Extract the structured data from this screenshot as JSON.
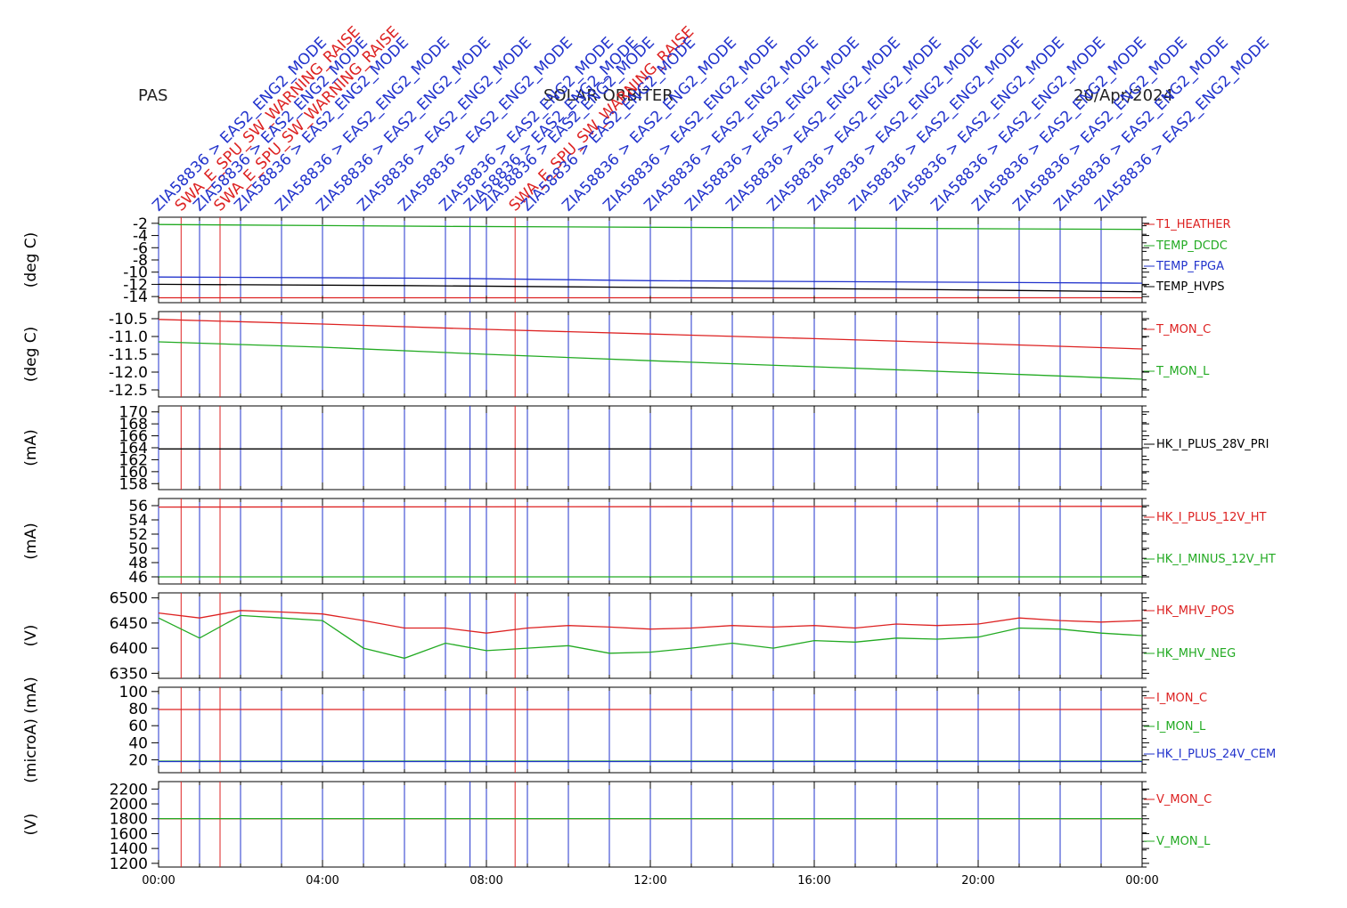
{
  "header": {
    "instrument": "PAS",
    "mission": "SOLAR ORBITER",
    "date": "20/Apr/2024"
  },
  "event_labels": [
    {
      "t": 0.0,
      "text": "ZIA58836 > EAS2_ENG2_MODE",
      "color": "#2233cc"
    },
    {
      "t": 0.55,
      "text": "SWA_E_SPU_SW_WARNING_RAISE",
      "color": "#dd2222"
    },
    {
      "t": 1.0,
      "text": "ZIA58836 > EAS2_ENG2_MODE",
      "color": "#2233cc"
    },
    {
      "t": 1.5,
      "text": "SWA_E_SPU_SW_WARNING_RAISE",
      "color": "#dd2222"
    },
    {
      "t": 2.0,
      "text": "ZIA58836 > EAS2_ENG2_MODE",
      "color": "#2233cc"
    },
    {
      "t": 3.0,
      "text": "ZIA58836 > EAS2_ENG2_MODE",
      "color": "#2233cc"
    },
    {
      "t": 4.0,
      "text": "ZIA58836 > EAS2_ENG2_MODE",
      "color": "#2233cc"
    },
    {
      "t": 5.0,
      "text": "ZIA58836 > EAS2_ENG2_MODE",
      "color": "#2233cc"
    },
    {
      "t": 6.0,
      "text": "ZIA58836 > EAS2_ENG2_MODE",
      "color": "#2233cc"
    },
    {
      "t": 7.0,
      "text": "ZIA58836 > EAS2_ENG2_MODE",
      "color": "#2233cc"
    },
    {
      "t": 7.6,
      "text": "ZIA58836 > EAS2_ENG2_MODE",
      "color": "#2233cc"
    },
    {
      "t": 8.0,
      "text": "ZIA58836 > EAS2_ENG2_MODE",
      "color": "#2233cc"
    },
    {
      "t": 8.7,
      "text": "SWA_E_SPU_SW_WARNING_RAISE",
      "color": "#dd2222"
    },
    {
      "t": 9.0,
      "text": "ZIA58836 > EAS2_ENG2_MODE",
      "color": "#2233cc"
    },
    {
      "t": 10.0,
      "text": "ZIA58836 > EAS2_ENG2_MODE",
      "color": "#2233cc"
    },
    {
      "t": 11.0,
      "text": "ZIA58836 > EAS2_ENG2_MODE",
      "color": "#2233cc"
    },
    {
      "t": 12.0,
      "text": "ZIA58836 > EAS2_ENG2_MODE",
      "color": "#2233cc"
    },
    {
      "t": 13.0,
      "text": "ZIA58836 > EAS2_ENG2_MODE",
      "color": "#2233cc"
    },
    {
      "t": 14.0,
      "text": "ZIA58836 > EAS2_ENG2_MODE",
      "color": "#2233cc"
    },
    {
      "t": 15.0,
      "text": "ZIA58836 > EAS2_ENG2_MODE",
      "color": "#2233cc"
    },
    {
      "t": 16.0,
      "text": "ZIA58836 > EAS2_ENG2_MODE",
      "color": "#2233cc"
    },
    {
      "t": 17.0,
      "text": "ZIA58836 > EAS2_ENG2_MODE",
      "color": "#2233cc"
    },
    {
      "t": 18.0,
      "text": "ZIA58836 > EAS2_ENG2_MODE",
      "color": "#2233cc"
    },
    {
      "t": 19.0,
      "text": "ZIA58836 > EAS2_ENG2_MODE",
      "color": "#2233cc"
    },
    {
      "t": 20.0,
      "text": "ZIA58836 > EAS2_ENG2_MODE",
      "color": "#2233cc"
    },
    {
      "t": 21.0,
      "text": "ZIA58836 > EAS2_ENG2_MODE",
      "color": "#2233cc"
    },
    {
      "t": 22.0,
      "text": "ZIA58836 > EAS2_ENG2_MODE",
      "color": "#2233cc"
    },
    {
      "t": 23.0,
      "text": "ZIA58836 > EAS2_ENG2_MODE",
      "color": "#2233cc"
    }
  ],
  "chart_data": [
    {
      "type": "line",
      "ylabel": "(deg C)",
      "yticks": [
        "-2",
        "-4",
        "-6",
        "-8",
        "-10",
        "-12",
        "-14"
      ],
      "ylim": [
        -15,
        -1
      ],
      "series": [
        {
          "name": "T1_HEATHER",
          "color": "#dd2222",
          "x": [
            0,
            24
          ],
          "y": [
            -14.2,
            -14.2
          ]
        },
        {
          "name": "TEMP_DCDC",
          "color": "#22aa22",
          "x": [
            0,
            7,
            24
          ],
          "y": [
            -2.2,
            -2.5,
            -3.0
          ]
        },
        {
          "name": "TEMP_FPGA",
          "color": "#2233cc",
          "x": [
            0,
            7,
            12,
            24
          ],
          "y": [
            -10.8,
            -11.0,
            -11.4,
            -11.8
          ]
        },
        {
          "name": "TEMP_HVPS",
          "color": "#000000",
          "x": [
            0,
            6,
            12,
            18,
            24
          ],
          "y": [
            -12.0,
            -12.2,
            -12.5,
            -12.8,
            -13.2
          ]
        }
      ]
    },
    {
      "type": "line",
      "ylabel": "(deg C)",
      "yticks": [
        "-10.5",
        "-11.0",
        "-11.5",
        "-12.0",
        "-12.5"
      ],
      "ylim": [
        -12.7,
        -10.3
      ],
      "series": [
        {
          "name": "T_MON_C",
          "color": "#dd2222",
          "x": [
            0,
            4,
            8,
            12,
            16,
            20,
            24
          ],
          "y": [
            -10.52,
            -10.65,
            -10.8,
            -10.93,
            -11.06,
            -11.2,
            -11.35
          ]
        },
        {
          "name": "T_MON_L",
          "color": "#22aa22",
          "x": [
            0,
            4,
            8,
            12,
            16,
            20,
            24
          ],
          "y": [
            -11.15,
            -11.3,
            -11.5,
            -11.68,
            -11.85,
            -12.02,
            -12.2
          ]
        }
      ]
    },
    {
      "type": "line",
      "ylabel": "(mA)",
      "yticks": [
        "170",
        "168",
        "166",
        "164",
        "162",
        "160",
        "158"
      ],
      "ylim": [
        157,
        171
      ],
      "series": [
        {
          "name": "HK_I_PLUS_28V_PRI",
          "color": "#000000",
          "x": [
            0,
            24
          ],
          "y": [
            163.8,
            163.8
          ]
        }
      ]
    },
    {
      "type": "line",
      "ylabel": "(mA)",
      "yticks": [
        "56",
        "54",
        "52",
        "50",
        "48",
        "46"
      ],
      "ylim": [
        45,
        57
      ],
      "series": [
        {
          "name": "HK_I_PLUS_12V_HT",
          "color": "#dd2222",
          "x": [
            0,
            24
          ],
          "y": [
            55.8,
            55.9
          ]
        },
        {
          "name": "HK_I_MINUS_12V_HT",
          "color": "#22aa22",
          "x": [
            0,
            24
          ],
          "y": [
            46.0,
            46.0
          ]
        }
      ]
    },
    {
      "type": "line",
      "ylabel": "(V)",
      "yticks": [
        "6500",
        "6450",
        "6400",
        "6350"
      ],
      "ylim": [
        6340,
        6510
      ],
      "series": [
        {
          "name": "HK_MHV_POS",
          "color": "#dd2222",
          "x": [
            0,
            1,
            2,
            3,
            4,
            5,
            6,
            7,
            8,
            9,
            10,
            11,
            12,
            13,
            14,
            15,
            16,
            17,
            18,
            19,
            20,
            21,
            22,
            23,
            24
          ],
          "y": [
            6470,
            6460,
            6475,
            6472,
            6468,
            6455,
            6440,
            6440,
            6430,
            6440,
            6445,
            6442,
            6438,
            6440,
            6445,
            6442,
            6445,
            6440,
            6448,
            6445,
            6448,
            6460,
            6455,
            6452,
            6455
          ]
        },
        {
          "name": "HK_MHV_NEG",
          "color": "#22aa22",
          "x": [
            0,
            1,
            2,
            3,
            4,
            5,
            6,
            7,
            8,
            9,
            10,
            11,
            12,
            13,
            14,
            15,
            16,
            17,
            18,
            19,
            20,
            21,
            22,
            23,
            24
          ],
          "y": [
            6460,
            6420,
            6465,
            6460,
            6455,
            6400,
            6380,
            6410,
            6395,
            6400,
            6405,
            6390,
            6392,
            6400,
            6410,
            6400,
            6415,
            6412,
            6420,
            6418,
            6422,
            6440,
            6438,
            6430,
            6425
          ]
        }
      ]
    },
    {
      "type": "line",
      "ylabel": "(microA) (mA)",
      "yticks": [
        "100",
        "80",
        "60",
        "40",
        "20"
      ],
      "ylim": [
        5,
        105
      ],
      "series": [
        {
          "name": "I_MON_C",
          "color": "#dd2222",
          "x": [
            0,
            24
          ],
          "y": [
            79,
            79
          ]
        },
        {
          "name": "I_MON_L",
          "color": "#22aa22",
          "x": [
            0,
            24
          ],
          "y": [
            18.5,
            18.5
          ]
        },
        {
          "name": "HK_I_PLUS_24V_CEM",
          "color": "#2233cc",
          "x": [
            0,
            24
          ],
          "y": [
            18,
            18
          ]
        }
      ]
    },
    {
      "type": "line",
      "ylabel": "(V)",
      "yticks": [
        "2200",
        "2000",
        "1800",
        "1600",
        "1400",
        "1200"
      ],
      "ylim": [
        1150,
        2300
      ],
      "series": [
        {
          "name": "V_MON_C",
          "color": "#dd2222",
          "x": [
            0,
            24
          ],
          "y": [
            1800,
            1800
          ]
        },
        {
          "name": "V_MON_L",
          "color": "#22aa22",
          "x": [
            0,
            24
          ],
          "y": [
            1802,
            1802
          ]
        }
      ]
    }
  ],
  "xaxis": {
    "tick_labels": [
      "00:00",
      "04:00",
      "08:00",
      "12:00",
      "16:00",
      "20:00",
      "00:00"
    ],
    "range_hours": [
      0,
      24
    ]
  }
}
